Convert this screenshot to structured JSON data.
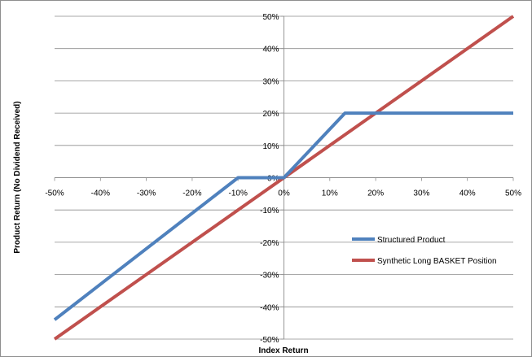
{
  "chart_data": {
    "type": "line",
    "title": "",
    "xlabel": "Index Return",
    "ylabel": "Product Return (No Dividend Received)",
    "xlim": [
      -0.5,
      0.5
    ],
    "ylim": [
      -0.5,
      0.5
    ],
    "x_ticks": [
      "-50%",
      "-40%",
      "-30%",
      "-20%",
      "-10%",
      "0%",
      "10%",
      "20%",
      "30%",
      "40%",
      "50%"
    ],
    "y_ticks": [
      "50%",
      "40%",
      "30%",
      "20%",
      "10%",
      "0%",
      "-10%",
      "-20%",
      "-30%",
      "-40%",
      "-50%"
    ],
    "grid": "horizontal",
    "legend_position": "bottom-right",
    "series": [
      {
        "name": "Structured Product",
        "color": "#4f81bd",
        "x": [
          -0.5,
          -0.1,
          0.0,
          0.133,
          0.5
        ],
        "y": [
          -0.44,
          0.0,
          0.0,
          0.2,
          0.2
        ]
      },
      {
        "name": "Synthetic Long BASKET Position",
        "color": "#c0504d",
        "x": [
          -0.5,
          0.5
        ],
        "y": [
          -0.5,
          0.5
        ]
      }
    ]
  }
}
